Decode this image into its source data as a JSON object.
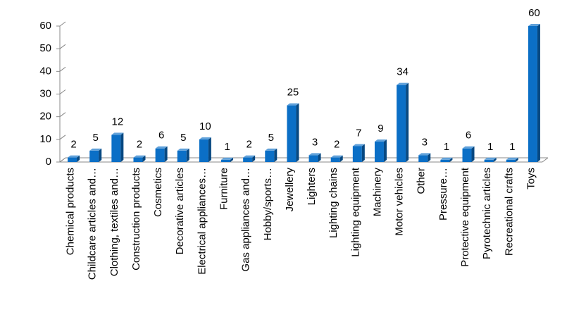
{
  "chart_data": {
    "type": "bar3d",
    "categories": [
      "Chemical products",
      "Childcare articles and…",
      "Clothing, textiles and…",
      "Construction products",
      "Cosmetics",
      "Decorative articles",
      "Electrical appliances…",
      "Furniture",
      "Gas appliances and…",
      "Hobby/sports…",
      "Jewellery",
      "Lighters",
      "Lighting chains",
      "Lighting equipment",
      "Machinery",
      "Motor vehicles",
      "Other",
      "Pressure…",
      "Protective equipment",
      "Pyrotechnic articles",
      "Recreational crafts",
      "Toys"
    ],
    "values": [
      2,
      5,
      12,
      2,
      6,
      5,
      10,
      1,
      2,
      5,
      25,
      3,
      2,
      7,
      9,
      34,
      3,
      1,
      6,
      1,
      1,
      60
    ],
    "color": "#0b6fc6",
    "ylim": [
      0,
      60
    ],
    "yticks": [
      0,
      10,
      20,
      30,
      40,
      50,
      60
    ],
    "grid": false
  }
}
